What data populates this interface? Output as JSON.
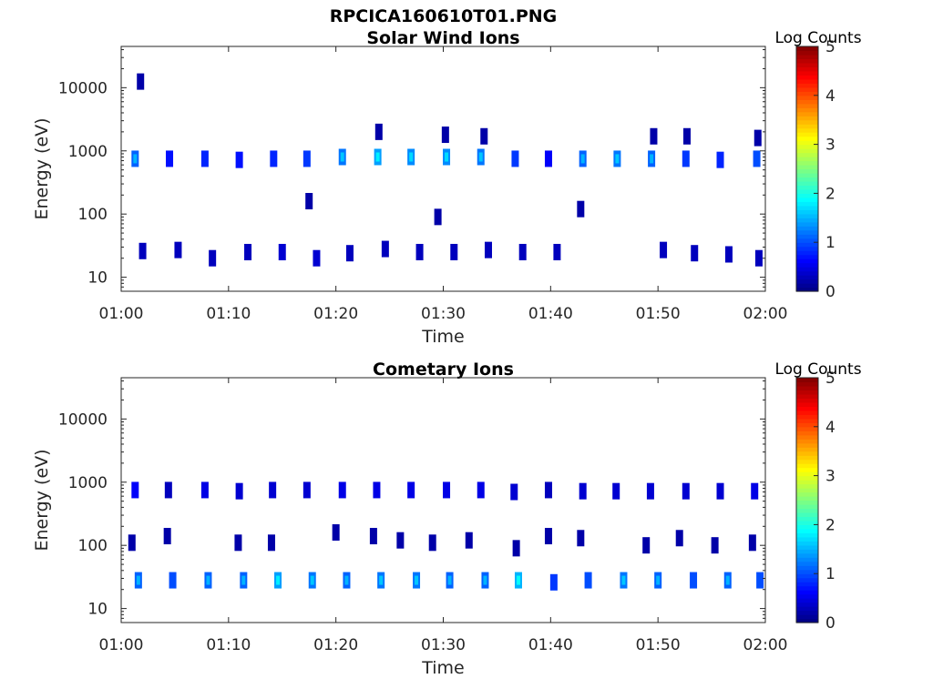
{
  "figure": {
    "title": "RPCICA160610T01.PNG"
  },
  "chart_data": [
    {
      "type": "heatmap",
      "title": "Solar Wind Ions",
      "xlabel": "Time",
      "ylabel": "Energy (eV)",
      "y_scale": "log",
      "x_ticks": [
        "01:00",
        "01:10",
        "01:20",
        "01:30",
        "01:40",
        "01:50",
        "02:00"
      ],
      "y_ticks": [
        "10",
        "100",
        "1000",
        "10000"
      ],
      "xlim_minutes": [
        0,
        60
      ],
      "ylim_eV": [
        6,
        45000
      ],
      "colorbar": {
        "label": "Log Counts",
        "min": 0,
        "max": 5,
        "ticks": [
          "0",
          "1",
          "2",
          "3",
          "4",
          "5"
        ],
        "colormap": "jet"
      },
      "grid": false,
      "cells": [
        {
          "t": 1.3,
          "e": 750,
          "v": 1.1
        },
        {
          "t": 4.5,
          "e": 750,
          "v": 0.7
        },
        {
          "t": 7.8,
          "e": 750,
          "v": 0.8
        },
        {
          "t": 11.0,
          "e": 720,
          "v": 0.7
        },
        {
          "t": 14.2,
          "e": 750,
          "v": 0.8
        },
        {
          "t": 17.3,
          "e": 750,
          "v": 0.9
        },
        {
          "t": 20.6,
          "e": 800,
          "v": 1.2
        },
        {
          "t": 23.9,
          "e": 800,
          "v": 1.4
        },
        {
          "t": 27.0,
          "e": 800,
          "v": 1.3
        },
        {
          "t": 30.3,
          "e": 800,
          "v": 1.3
        },
        {
          "t": 33.5,
          "e": 800,
          "v": 1.2
        },
        {
          "t": 36.7,
          "e": 750,
          "v": 0.9
        },
        {
          "t": 39.8,
          "e": 750,
          "v": 0.6
        },
        {
          "t": 43.0,
          "e": 750,
          "v": 1.1
        },
        {
          "t": 46.2,
          "e": 750,
          "v": 1.2
        },
        {
          "t": 49.4,
          "e": 750,
          "v": 1.1
        },
        {
          "t": 52.6,
          "e": 750,
          "v": 0.9
        },
        {
          "t": 55.8,
          "e": 720,
          "v": 0.8
        },
        {
          "t": 59.2,
          "e": 750,
          "v": 1.0
        },
        {
          "t": 2.0,
          "e": 26,
          "v": 0.3
        },
        {
          "t": 5.3,
          "e": 27,
          "v": 0.3
        },
        {
          "t": 8.5,
          "e": 20,
          "v": 0.3
        },
        {
          "t": 11.8,
          "e": 25,
          "v": 0.3
        },
        {
          "t": 15.0,
          "e": 25,
          "v": 0.4
        },
        {
          "t": 18.2,
          "e": 20,
          "v": 0.4
        },
        {
          "t": 21.3,
          "e": 24,
          "v": 0.3
        },
        {
          "t": 24.6,
          "e": 28,
          "v": 0.3
        },
        {
          "t": 27.8,
          "e": 25,
          "v": 0.3
        },
        {
          "t": 31.0,
          "e": 25,
          "v": 0.3
        },
        {
          "t": 34.2,
          "e": 27,
          "v": 0.3
        },
        {
          "t": 37.4,
          "e": 25,
          "v": 0.3
        },
        {
          "t": 40.6,
          "e": 25,
          "v": 0.3
        },
        {
          "t": 50.5,
          "e": 27,
          "v": 0.3
        },
        {
          "t": 53.4,
          "e": 24,
          "v": 0.3
        },
        {
          "t": 56.6,
          "e": 23,
          "v": 0.3
        },
        {
          "t": 59.4,
          "e": 20,
          "v": 0.3
        },
        {
          "t": 1.8,
          "e": 12500,
          "v": 0.2
        },
        {
          "t": 24.0,
          "e": 2000,
          "v": 0.2
        },
        {
          "t": 30.2,
          "e": 1800,
          "v": 0.2
        },
        {
          "t": 42.8,
          "e": 120,
          "v": 0.2
        },
        {
          "t": 17.5,
          "e": 160,
          "v": 0.2
        },
        {
          "t": 29.5,
          "e": 90,
          "v": 0.2
        },
        {
          "t": 49.6,
          "e": 1700,
          "v": 0.2
        },
        {
          "t": 52.7,
          "e": 1700,
          "v": 0.2
        },
        {
          "t": 33.8,
          "e": 1700,
          "v": 0.2
        },
        {
          "t": 59.3,
          "e": 1600,
          "v": 0.2
        }
      ]
    },
    {
      "type": "heatmap",
      "title": "Cometary Ions",
      "xlabel": "Time",
      "ylabel": "Energy (eV)",
      "y_scale": "log",
      "x_ticks": [
        "01:00",
        "01:10",
        "01:20",
        "01:30",
        "01:40",
        "01:50",
        "02:00"
      ],
      "y_ticks": [
        "10",
        "100",
        "1000",
        "10000"
      ],
      "xlim_minutes": [
        0,
        60
      ],
      "ylim_eV": [
        6,
        45000
      ],
      "colorbar": {
        "label": "Log Counts",
        "min": 0,
        "max": 5,
        "ticks": [
          "0",
          "1",
          "2",
          "3",
          "4",
          "5"
        ],
        "colormap": "jet"
      },
      "grid": false,
      "cells": [
        {
          "t": 1.3,
          "e": 750,
          "v": 0.6
        },
        {
          "t": 4.4,
          "e": 750,
          "v": 0.3
        },
        {
          "t": 7.8,
          "e": 750,
          "v": 0.5
        },
        {
          "t": 11.0,
          "e": 720,
          "v": 0.4
        },
        {
          "t": 14.1,
          "e": 750,
          "v": 0.4
        },
        {
          "t": 17.3,
          "e": 750,
          "v": 0.4
        },
        {
          "t": 20.6,
          "e": 750,
          "v": 0.5
        },
        {
          "t": 23.8,
          "e": 750,
          "v": 0.5
        },
        {
          "t": 27.0,
          "e": 750,
          "v": 0.5
        },
        {
          "t": 30.3,
          "e": 750,
          "v": 0.5
        },
        {
          "t": 33.5,
          "e": 750,
          "v": 0.5
        },
        {
          "t": 36.6,
          "e": 700,
          "v": 0.4
        },
        {
          "t": 39.8,
          "e": 750,
          "v": 0.3
        },
        {
          "t": 43.0,
          "e": 720,
          "v": 0.4
        },
        {
          "t": 46.1,
          "e": 720,
          "v": 0.4
        },
        {
          "t": 49.3,
          "e": 720,
          "v": 0.4
        },
        {
          "t": 52.6,
          "e": 720,
          "v": 0.4
        },
        {
          "t": 55.8,
          "e": 720,
          "v": 0.4
        },
        {
          "t": 59.0,
          "e": 720,
          "v": 0.5
        },
        {
          "t": 1.6,
          "e": 28,
          "v": 1.1
        },
        {
          "t": 4.8,
          "e": 28,
          "v": 1.0
        },
        {
          "t": 8.1,
          "e": 28,
          "v": 1.1
        },
        {
          "t": 11.4,
          "e": 28,
          "v": 1.1
        },
        {
          "t": 14.6,
          "e": 28,
          "v": 1.4
        },
        {
          "t": 17.8,
          "e": 28,
          "v": 1.2
        },
        {
          "t": 21.0,
          "e": 28,
          "v": 1.1
        },
        {
          "t": 24.2,
          "e": 28,
          "v": 1.2
        },
        {
          "t": 27.5,
          "e": 28,
          "v": 1.2
        },
        {
          "t": 30.6,
          "e": 28,
          "v": 1.1
        },
        {
          "t": 33.9,
          "e": 28,
          "v": 1.1
        },
        {
          "t": 37.0,
          "e": 28,
          "v": 1.5
        },
        {
          "t": 40.3,
          "e": 26,
          "v": 0.9
        },
        {
          "t": 43.5,
          "e": 28,
          "v": 1.0
        },
        {
          "t": 46.8,
          "e": 28,
          "v": 1.2
        },
        {
          "t": 50.0,
          "e": 28,
          "v": 1.1
        },
        {
          "t": 53.3,
          "e": 28,
          "v": 1.0
        },
        {
          "t": 56.5,
          "e": 28,
          "v": 1.1
        },
        {
          "t": 59.5,
          "e": 28,
          "v": 1.0
        },
        {
          "t": 1.0,
          "e": 110,
          "v": 0.2
        },
        {
          "t": 4.3,
          "e": 140,
          "v": 0.2
        },
        {
          "t": 10.9,
          "e": 110,
          "v": 0.2
        },
        {
          "t": 14.0,
          "e": 110,
          "v": 0.2
        },
        {
          "t": 20.0,
          "e": 160,
          "v": 0.2
        },
        {
          "t": 23.5,
          "e": 140,
          "v": 0.2
        },
        {
          "t": 26.0,
          "e": 120,
          "v": 0.2
        },
        {
          "t": 29.0,
          "e": 110,
          "v": 0.2
        },
        {
          "t": 32.4,
          "e": 120,
          "v": 0.2
        },
        {
          "t": 36.8,
          "e": 90,
          "v": 0.2
        },
        {
          "t": 39.8,
          "e": 140,
          "v": 0.2
        },
        {
          "t": 42.8,
          "e": 130,
          "v": 0.2
        },
        {
          "t": 48.9,
          "e": 100,
          "v": 0.2
        },
        {
          "t": 52.0,
          "e": 130,
          "v": 0.2
        },
        {
          "t": 55.3,
          "e": 100,
          "v": 0.2
        },
        {
          "t": 58.8,
          "e": 110,
          "v": 0.2
        }
      ]
    }
  ]
}
